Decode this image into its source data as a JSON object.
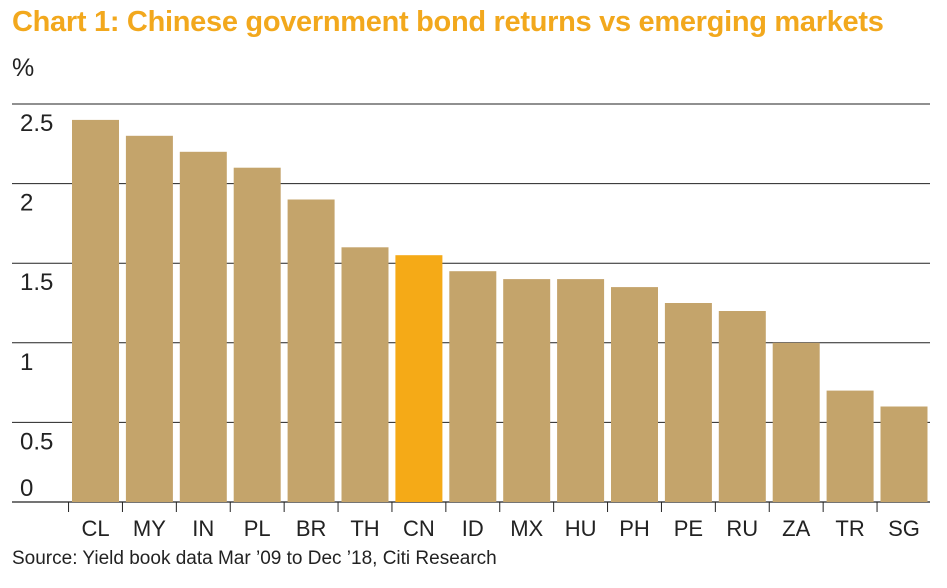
{
  "title": "Chart 1: Chinese government bond returns vs emerging markets",
  "unit_label": "%",
  "source": "Source: Yield book data Mar ’09 to Dec ’18, Citi Research",
  "colors": {
    "bar": "#c4a46b",
    "highlight": "#f5aa17",
    "title": "#f2a81d",
    "grid": "#222222"
  },
  "chart_data": {
    "type": "bar",
    "title": "Chart 1: Chinese government bond returns vs emerging markets",
    "xlabel": "",
    "ylabel": "%",
    "categories": [
      "CL",
      "MY",
      "IN",
      "PL",
      "BR",
      "TH",
      "CN",
      "ID",
      "MX",
      "HU",
      "PH",
      "PE",
      "RU",
      "ZA",
      "TR",
      "SG"
    ],
    "values": [
      2.4,
      2.3,
      2.2,
      2.1,
      1.9,
      1.6,
      1.55,
      1.45,
      1.4,
      1.4,
      1.35,
      1.25,
      1.2,
      1.0,
      0.7,
      0.6
    ],
    "highlight": "CN",
    "ylim": [
      0,
      2.5
    ],
    "yticks": [
      "0",
      "0.5",
      "1",
      "1.5",
      "2",
      "2.5"
    ],
    "grid": true
  }
}
